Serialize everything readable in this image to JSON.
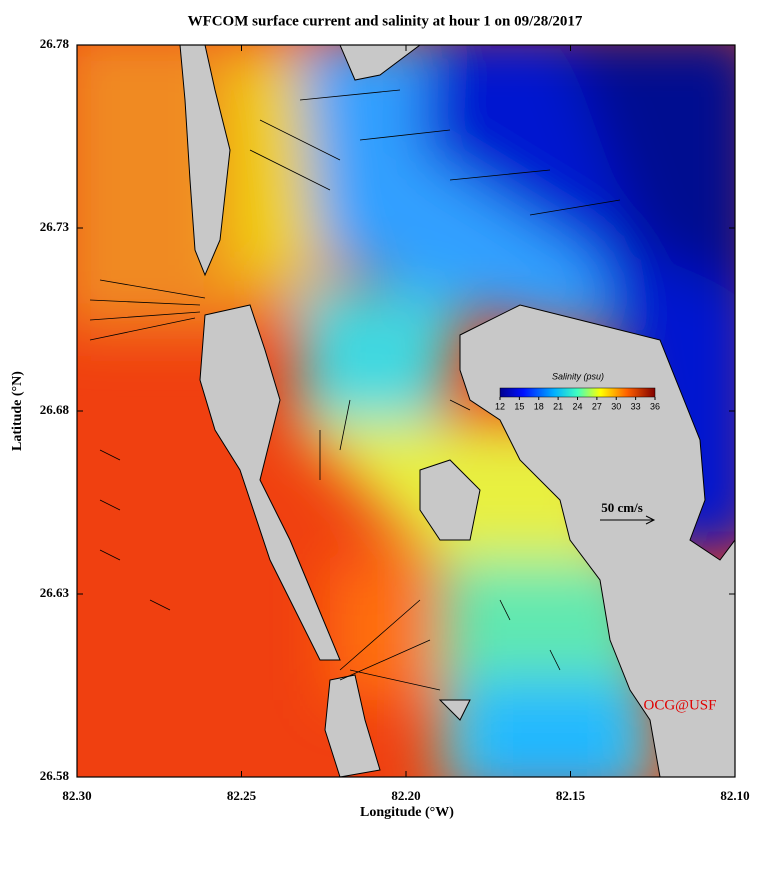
{
  "chart_data": {
    "type": "map",
    "title": "WFCOM surface current and salinity at hour 1 on 09/28/2017",
    "xlabel": "Longitude (°W)",
    "ylabel": "Latitude (°N)",
    "xlim": [
      82.3,
      82.1
    ],
    "xticks": [
      {
        "value": 82.3,
        "label": "82.30"
      },
      82.25,
      {
        "value": 82.2,
        "label": "82.20"
      },
      82.15,
      {
        "value": 82.1,
        "label": "82.10"
      }
    ],
    "ylim": [
      26.58,
      26.78
    ],
    "yticks": [
      26.58,
      26.63,
      26.68,
      26.73,
      26.78
    ],
    "colorbar": {
      "title": "Salinity (psu)",
      "range": [
        12,
        36
      ],
      "ticks": [
        12,
        15,
        18,
        21,
        24,
        27,
        30,
        33,
        36
      ]
    },
    "annotations": [
      "50 cm/s",
      "OCG@USF"
    ]
  }
}
